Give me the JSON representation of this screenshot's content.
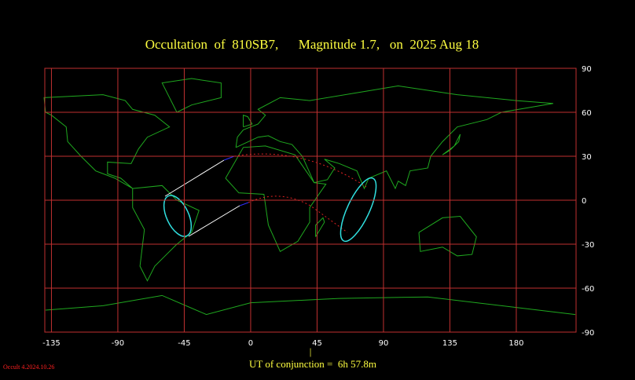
{
  "title": "Occultation  of  810SB7,      Magnitude 1.7,   on  2025 Aug 18",
  "map": {
    "xlim": [
      -139.5,
      220.5
    ],
    "ylim": [
      -90,
      90
    ],
    "xticks": [
      -135,
      -90,
      -45,
      0,
      45,
      90,
      135,
      180
    ],
    "yticks": [
      90,
      60,
      30,
      0,
      -30,
      -60,
      -90
    ]
  },
  "conjunction_marker": "|",
  "conjunction_label": "UT of conjunction =  6h 57.8m",
  "footer": "Occult 4.2024.10.26"
}
